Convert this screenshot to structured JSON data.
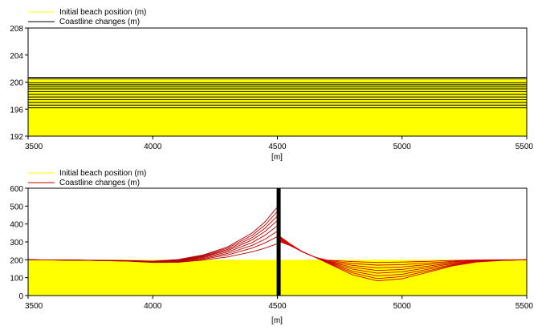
{
  "chart_data": [
    {
      "type": "line",
      "legend": [
        "Initial beach position (m)",
        "Coastline changes (m)"
      ],
      "legend_placement": "top-left",
      "colors": {
        "initial": "#ffff00",
        "changes": "#000000"
      },
      "xlabel": "[m]",
      "ylabel": "",
      "xlim": [
        3500,
        5500
      ],
      "ylim": [
        192,
        208
      ],
      "xticks": [
        "3500",
        "4000",
        "4500",
        "5000",
        "5500"
      ],
      "yticks": [
        "192",
        "196",
        "200",
        "204",
        "208"
      ],
      "initial_beach": {
        "x": [
          3500,
          5500
        ],
        "y": [
          200.5,
          200.5
        ]
      },
      "coastline_levels": [
        200.7,
        200.5,
        199.9,
        199.6,
        199.3,
        199.0,
        198.6,
        198.2,
        197.8,
        197.4,
        197.0,
        196.6,
        196.2
      ]
    },
    {
      "type": "line",
      "legend": [
        "Initial beach position (m)",
        "Coastline changes (m)"
      ],
      "legend_placement": "top-left",
      "colors": {
        "initial": "#ffff00",
        "changes": "#cc0000",
        "structure": "#000000"
      },
      "xlabel": "[m]",
      "ylabel": "",
      "xlim": [
        3500,
        5500
      ],
      "ylim": [
        0,
        600
      ],
      "xticks": [
        "3500",
        "4000",
        "4500",
        "5000",
        "5500"
      ],
      "yticks": [
        "0",
        "100",
        "200",
        "300",
        "400",
        "500",
        "600"
      ],
      "structure_x": 4505,
      "initial_beach": {
        "x": [
          3500,
          5500
        ],
        "y": [
          200,
          200
        ]
      },
      "x": [
        3500,
        3700,
        3900,
        4000,
        4100,
        4200,
        4300,
        4400,
        4450,
        4500,
        4510,
        4550,
        4600,
        4650,
        4700,
        4800,
        4900,
        5000,
        5100,
        5200,
        5300,
        5400,
        5500
      ],
      "series": [
        {
          "values": [
            200,
            198,
            192,
            185,
            186,
            198,
            216,
            245,
            265,
            290,
            300,
            280,
            245,
            215,
            198,
            190,
            185,
            187,
            191,
            196,
            199,
            200,
            200
          ]
        },
        {
          "values": [
            200,
            198,
            193,
            187,
            189,
            203,
            227,
            266,
            294,
            330,
            305,
            282,
            245,
            215,
            196,
            179,
            170,
            173,
            182,
            191,
            197,
            199,
            200
          ]
        },
        {
          "values": [
            200,
            198,
            193,
            188,
            191,
            207,
            235,
            281,
            315,
            360,
            310,
            284,
            245,
            215,
            193,
            169,
            155,
            160,
            173,
            187,
            196,
            199,
            200
          ]
        },
        {
          "values": [
            200,
            198,
            194,
            189,
            193,
            212,
            243,
            297,
            337,
            390,
            315,
            285,
            245,
            215,
            191,
            158,
            140,
            146,
            164,
            182,
            194,
            198,
            200
          ]
        },
        {
          "values": [
            200,
            198,
            194,
            190,
            195,
            216,
            251,
            312,
            358,
            420,
            320,
            286,
            245,
            215,
            189,
            148,
            125,
            133,
            155,
            178,
            193,
            198,
            200
          ]
        },
        {
          "values": [
            200,
            198,
            195,
            191,
            197,
            219,
            258,
            325,
            376,
            445,
            324,
            287,
            245,
            215,
            187,
            137,
            110,
            119,
            146,
            173,
            191,
            197,
            200
          ]
        },
        {
          "values": [
            200,
            198,
            195,
            191,
            199,
            223,
            265,
            338,
            394,
            470,
            327,
            288,
            245,
            215,
            184,
            127,
            95,
            106,
            137,
            169,
            190,
            197,
            200
          ]
        },
        {
          "values": [
            200,
            198,
            196,
            192,
            201,
            226,
            272,
            351,
            412,
            495,
            330,
            290,
            245,
            215,
            182,
            117,
            82,
            94,
            129,
            165,
            188,
            196,
            200
          ]
        }
      ]
    }
  ]
}
